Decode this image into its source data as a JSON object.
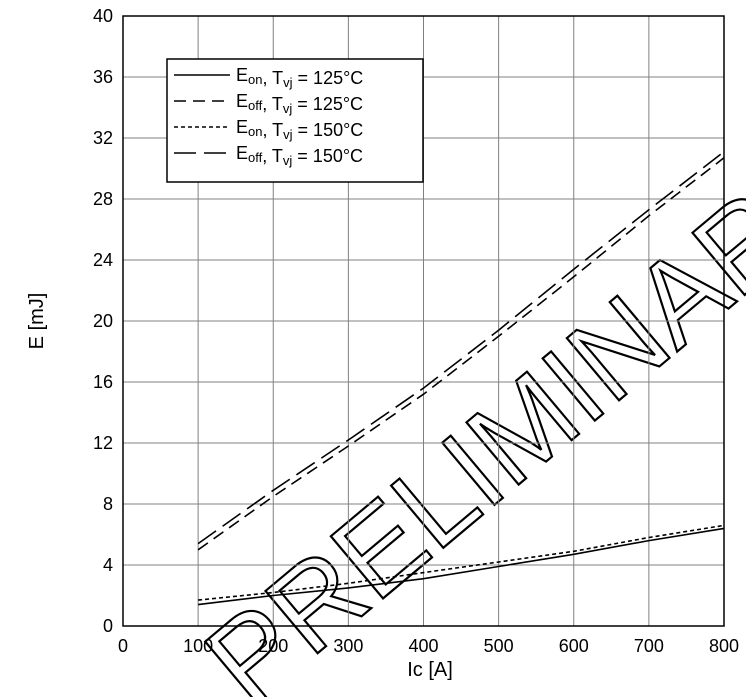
{
  "chart_data": {
    "type": "line",
    "title": "",
    "xlabel": "Ic [A]",
    "ylabel": "E [mJ]",
    "xlim": [
      0,
      800
    ],
    "ylim": [
      0,
      40
    ],
    "xticks": [
      0,
      100,
      200,
      300,
      400,
      500,
      600,
      700,
      800
    ],
    "yticks": [
      0,
      4,
      8,
      12,
      16,
      20,
      24,
      28,
      32,
      36,
      40
    ],
    "grid": true,
    "legend_position": "top-left",
    "series": [
      {
        "name": "Eon, Tvj = 125°C",
        "dash": "solid",
        "x": [
          100,
          200,
          300,
          400,
          500,
          600,
          700,
          800
        ],
        "y": [
          1.4,
          2.0,
          2.5,
          3.1,
          3.9,
          4.7,
          5.6,
          6.4
        ]
      },
      {
        "name": "Eoff, Tvj = 125°C",
        "dash": "dashed",
        "x": [
          100,
          200,
          300,
          400,
          500,
          600,
          700,
          800
        ],
        "y": [
          5.0,
          8.5,
          11.8,
          15.2,
          19.0,
          22.9,
          26.9,
          30.7
        ]
      },
      {
        "name": "Eon, Tvj = 150°C",
        "dash": "dotted",
        "x": [
          100,
          200,
          300,
          400,
          500,
          600,
          700,
          800
        ],
        "y": [
          1.7,
          2.2,
          2.8,
          3.5,
          4.2,
          4.9,
          5.8,
          6.6
        ]
      },
      {
        "name": "Eoff, Tvj = 150°C",
        "dash": "long-dashed",
        "x": [
          100,
          200,
          300,
          400,
          500,
          600,
          700,
          800
        ],
        "y": [
          5.4,
          8.9,
          12.2,
          15.6,
          19.4,
          23.4,
          27.3,
          31.1
        ]
      }
    ],
    "legend": [
      {
        "base": "E",
        "sub": "on",
        "mid": ", T",
        "sub2": "vj",
        "tail": " = 125°C",
        "dash": "solid"
      },
      {
        "base": "E",
        "sub": "off",
        "mid": ", T",
        "sub2": "vj",
        "tail": " = 125°C",
        "dash": "dashed"
      },
      {
        "base": "E",
        "sub": "on",
        "mid": ", T",
        "sub2": "vj",
        "tail": " = 150°C",
        "dash": "dotted"
      },
      {
        "base": "E",
        "sub": "off",
        "mid": ", T",
        "sub2": "vj",
        "tail": " = 150°C",
        "dash": "long-dashed"
      }
    ],
    "watermark": "PRELIMINARY",
    "colors": {
      "line": "#000000",
      "grid": "#808080",
      "background": "#ffffff"
    }
  }
}
